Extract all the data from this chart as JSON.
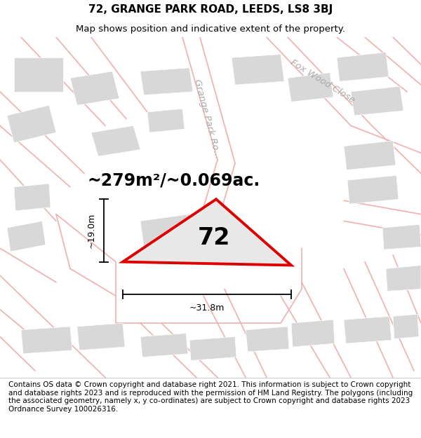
{
  "title_line1": "72, GRANGE PARK ROAD, LEEDS, LS8 3BJ",
  "title_line2": "Map shows position and indicative extent of the property.",
  "footer_text": "Contains OS data © Crown copyright and database right 2021. This information is subject to Crown copyright and database rights 2023 and is reproduced with the permission of HM Land Registry. The polygons (including the associated geometry, namely x, y co-ordinates) are subject to Crown copyright and database rights 2023 Ordnance Survey 100026316.",
  "area_text": "~279m²/~0.069ac.",
  "property_number": "72",
  "dim_vertical": "~19.0m",
  "dim_horizontal": "~31.8m",
  "street_label1": "Grange Park Ro...",
  "street_label2": "Fox Wood Close",
  "map_bg": "#f8f8f8",
  "property_fill": "#e0e0e0",
  "property_edge": "#dd0000",
  "road_color": "#f0b0b0",
  "building_color": "#d8d8d8",
  "building_edge": "#ffffff",
  "title_fontsize": 11,
  "subtitle_fontsize": 9.5,
  "footer_fontsize": 7.5
}
